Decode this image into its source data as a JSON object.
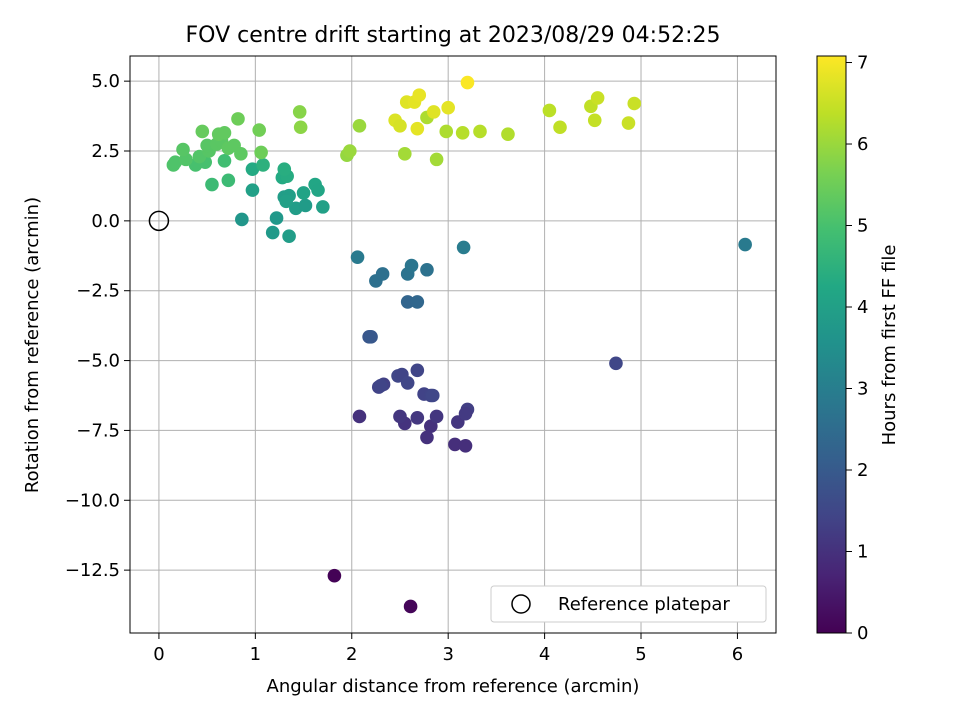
{
  "chart_data": {
    "type": "scatter",
    "title": "FOV centre drift starting at 2023/08/29 04:52:25",
    "xlabel": "Angular distance from reference (arcmin)",
    "ylabel": "Rotation from reference (arcmin)",
    "xlim": [
      -0.3,
      6.4
    ],
    "ylim": [
      -14.75,
      5.9
    ],
    "xticks": [
      0,
      1,
      2,
      3,
      4,
      5,
      6
    ],
    "xtick_labels": [
      "0",
      "1",
      "2",
      "3",
      "4",
      "5",
      "6"
    ],
    "yticks": [
      5.0,
      2.5,
      0.0,
      -2.5,
      -5.0,
      -7.5,
      -10.0,
      -12.5
    ],
    "ytick_labels": [
      "5.0",
      "2.5",
      "0.0",
      "−2.5",
      "−5.0",
      "−7.5",
      "−10.0",
      "−12.5"
    ],
    "grid": true,
    "colormap": "viridis",
    "colorbar": {
      "label": "Hours from first FF file",
      "range": [
        0,
        7.08
      ],
      "ticks": [
        0,
        1,
        2,
        3,
        4,
        5,
        6,
        7
      ],
      "tick_labels": [
        "0",
        "1",
        "2",
        "3",
        "4",
        "5",
        "6",
        "7"
      ]
    },
    "reference_point": {
      "x": 0,
      "y": 0,
      "label": "Reference platepar",
      "marker": "open-circle"
    },
    "legend_location": "lower right",
    "series": [
      {
        "points": [
          [
            1.82,
            -12.7,
            0.05
          ],
          [
            2.61,
            -13.8,
            0.1
          ],
          [
            2.08,
            -7.0,
            1.0
          ],
          [
            2.55,
            -7.25,
            1.05
          ],
          [
            2.82,
            -7.35,
            1.0
          ],
          [
            2.78,
            -7.75,
            1.0
          ],
          [
            3.07,
            -8.0,
            0.95
          ],
          [
            3.18,
            -8.05,
            0.95
          ],
          [
            2.88,
            -7.0,
            1.1
          ],
          [
            3.1,
            -7.2,
            1.1
          ],
          [
            3.2,
            -6.75,
            1.3
          ],
          [
            3.18,
            -6.9,
            1.2
          ],
          [
            2.68,
            -7.05,
            1.15
          ],
          [
            2.5,
            -7.0,
            1.1
          ],
          [
            2.28,
            -5.95,
            1.4
          ],
          [
            2.33,
            -5.85,
            1.35
          ],
          [
            2.3,
            -5.9,
            1.45
          ],
          [
            2.48,
            -5.55,
            1.5
          ],
          [
            2.52,
            -5.5,
            1.45
          ],
          [
            2.58,
            -5.8,
            1.5
          ],
          [
            2.68,
            -5.35,
            1.45
          ],
          [
            2.75,
            -6.2,
            1.4
          ],
          [
            2.82,
            -6.25,
            1.45
          ],
          [
            2.84,
            -6.25,
            1.5
          ],
          [
            4.74,
            -5.1,
            1.5
          ],
          [
            2.18,
            -4.15,
            1.9
          ],
          [
            2.2,
            -4.15,
            1.95
          ],
          [
            2.58,
            -2.9,
            2.3
          ],
          [
            2.68,
            -2.9,
            2.35
          ],
          [
            2.25,
            -2.15,
            2.6
          ],
          [
            2.32,
            -1.9,
            2.6
          ],
          [
            2.58,
            -1.9,
            2.7
          ],
          [
            2.62,
            -1.6,
            2.75
          ],
          [
            2.78,
            -1.75,
            2.65
          ],
          [
            2.06,
            -1.3,
            2.9
          ],
          [
            3.16,
            -0.95,
            2.95
          ],
          [
            6.08,
            -0.85,
            2.9
          ],
          [
            0.86,
            0.05,
            3.7
          ],
          [
            1.22,
            0.1,
            3.75
          ],
          [
            1.18,
            -0.42,
            3.8
          ],
          [
            1.35,
            -0.55,
            3.9
          ],
          [
            1.42,
            0.45,
            3.9
          ],
          [
            1.52,
            0.55,
            3.85
          ],
          [
            1.7,
            0.5,
            4.0
          ],
          [
            1.3,
            0.85,
            3.9
          ],
          [
            1.35,
            0.9,
            3.95
          ],
          [
            1.32,
            0.7,
            4.0
          ],
          [
            1.5,
            1.0,
            4.1
          ],
          [
            1.62,
            1.3,
            4.2
          ],
          [
            1.65,
            1.1,
            4.15
          ],
          [
            0.97,
            1.1,
            4.0
          ],
          [
            1.28,
            1.55,
            4.3
          ],
          [
            1.33,
            1.6,
            4.35
          ],
          [
            1.3,
            1.85,
            4.4
          ],
          [
            0.97,
            1.85,
            4.3
          ],
          [
            1.08,
            2.0,
            4.5
          ],
          [
            0.55,
            1.3,
            4.8
          ],
          [
            0.72,
            1.45,
            4.8
          ],
          [
            0.68,
            2.15,
            4.9
          ],
          [
            0.48,
            2.1,
            5.0
          ],
          [
            0.38,
            2.0,
            5.0
          ],
          [
            0.15,
            2.0,
            5.1
          ],
          [
            0.17,
            2.1,
            5.1
          ],
          [
            0.28,
            2.2,
            5.15
          ],
          [
            0.42,
            2.3,
            5.15
          ],
          [
            0.52,
            2.5,
            5.2
          ],
          [
            0.25,
            2.55,
            5.2
          ],
          [
            0.5,
            2.7,
            5.2
          ],
          [
            0.6,
            2.75,
            5.25
          ],
          [
            0.65,
            2.85,
            5.25
          ],
          [
            0.72,
            2.6,
            5.3
          ],
          [
            0.78,
            2.7,
            5.3
          ],
          [
            0.85,
            2.4,
            5.3
          ],
          [
            0.62,
            3.1,
            5.35
          ],
          [
            0.68,
            3.15,
            5.35
          ],
          [
            0.45,
            3.2,
            5.4
          ],
          [
            0.82,
            3.65,
            5.5
          ],
          [
            1.06,
            2.45,
            5.5
          ],
          [
            1.04,
            3.25,
            5.55
          ],
          [
            1.46,
            3.9,
            5.8
          ],
          [
            1.47,
            3.35,
            5.85
          ],
          [
            1.95,
            2.35,
            5.95
          ],
          [
            1.98,
            2.5,
            6.0
          ],
          [
            2.08,
            3.4,
            6.0
          ],
          [
            2.55,
            2.4,
            6.1
          ],
          [
            2.88,
            2.2,
            6.1
          ],
          [
            2.78,
            3.7,
            6.2
          ],
          [
            2.98,
            3.2,
            6.2
          ],
          [
            3.15,
            3.15,
            6.3
          ],
          [
            3.33,
            3.2,
            6.3
          ],
          [
            3.62,
            3.1,
            6.25
          ],
          [
            4.05,
            3.95,
            6.35
          ],
          [
            4.16,
            3.35,
            6.4
          ],
          [
            4.48,
            4.1,
            6.4
          ],
          [
            4.52,
            3.6,
            6.45
          ],
          [
            4.55,
            4.4,
            6.5
          ],
          [
            4.87,
            3.5,
            6.5
          ],
          [
            4.93,
            4.2,
            6.5
          ],
          [
            2.45,
            3.6,
            6.7
          ],
          [
            2.5,
            3.4,
            6.65
          ],
          [
            2.57,
            4.25,
            6.75
          ],
          [
            2.65,
            4.25,
            6.8
          ],
          [
            2.7,
            4.5,
            6.85
          ],
          [
            2.68,
            3.3,
            6.8
          ],
          [
            2.85,
            3.9,
            6.75
          ],
          [
            3.0,
            4.05,
            6.8
          ],
          [
            3.2,
            4.95,
            7.05
          ]
        ]
      }
    ]
  }
}
